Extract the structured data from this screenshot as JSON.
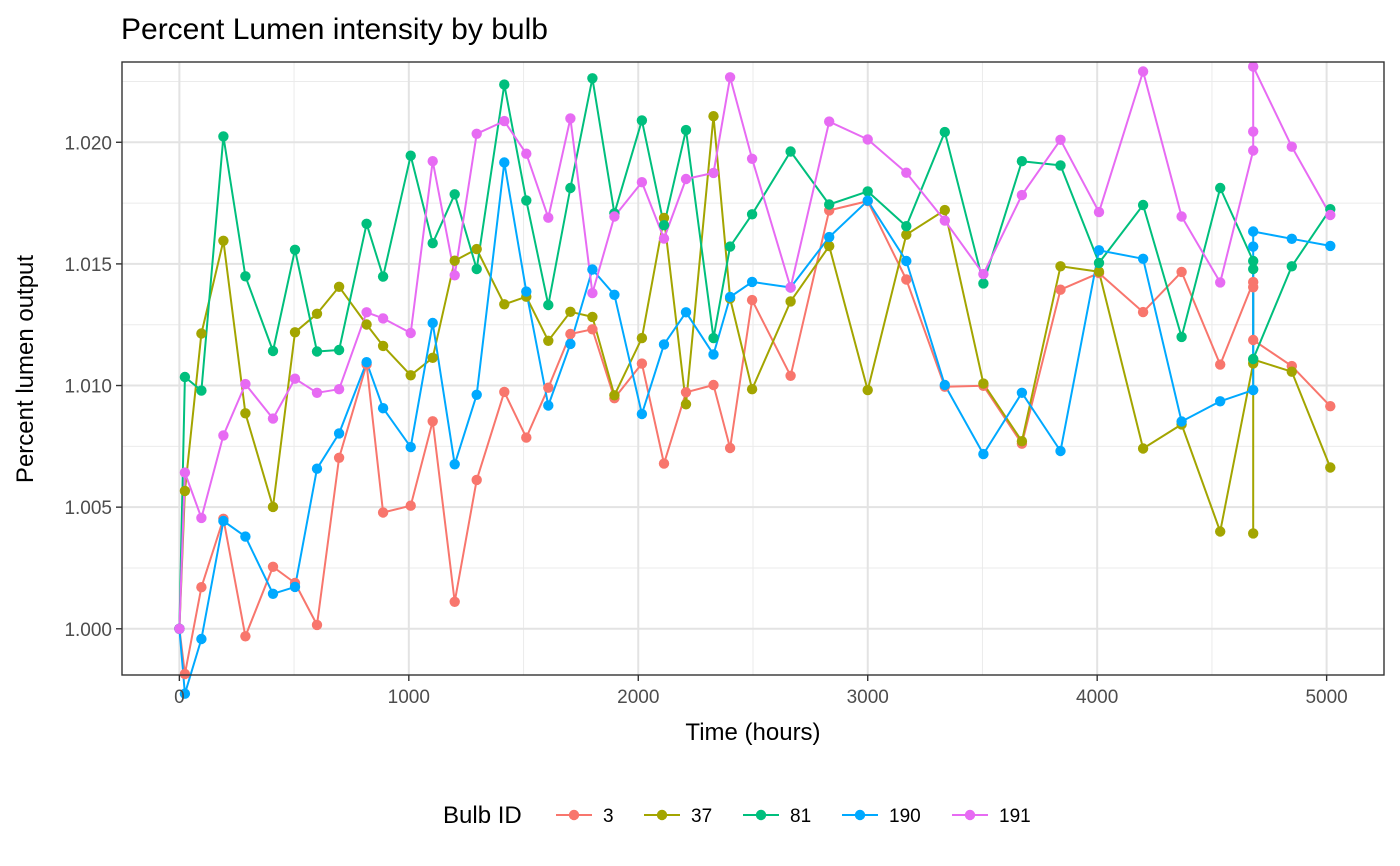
{
  "chart_data": {
    "type": "line",
    "title": "Percent Lumen intensity by bulb",
    "xlabel": "Time (hours)",
    "ylabel": "Percent lumen output",
    "xlim": [
      -250,
      5250
    ],
    "ylim": [
      0.9981,
      1.0233
    ],
    "x_ticks": [
      0,
      1000,
      2000,
      3000,
      4000,
      5000
    ],
    "x_tick_labels": [
      "0",
      "1000",
      "2000",
      "3000",
      "4000",
      "5000"
    ],
    "y_ticks": [
      1.0,
      1.005,
      1.01,
      1.015,
      1.02
    ],
    "y_tick_labels": [
      "1.000",
      "1.005",
      "1.010",
      "1.015",
      "1.020"
    ],
    "grid": true,
    "legend": {
      "title": "Bulb ID",
      "position": "bottom"
    },
    "series": [
      {
        "name": "3",
        "color": "#F8766D",
        "x": [
          0,
          24,
          96,
          192,
          288,
          408,
          504,
          600,
          696,
          816,
          888,
          1008,
          1104,
          1200,
          1296,
          1416,
          1512,
          1608,
          1704,
          1800,
          1896,
          2016,
          2112,
          2208,
          2328,
          2400,
          2496,
          2664,
          2832,
          3000,
          3168,
          3336,
          3504,
          3672,
          3840,
          4008,
          4200,
          4368,
          4536,
          4680,
          4680,
          4680,
          4848,
          5016
        ],
        "y": [
          1.0,
          0.99814,
          1.00171,
          1.00452,
          0.99969,
          1.00255,
          1.00188,
          1.00016,
          1.00703,
          1.01087,
          1.00478,
          1.00506,
          1.00853,
          1.00111,
          1.00612,
          1.00974,
          1.00786,
          1.00991,
          1.01212,
          1.01231,
          1.00948,
          1.0109,
          1.00679,
          1.00972,
          1.01002,
          1.00743,
          1.01351,
          1.0104,
          1.0172,
          1.01758,
          1.01436,
          1.00995,
          1.00999,
          1.00761,
          1.01394,
          1.01462,
          1.01302,
          1.01467,
          1.01086,
          1.01425,
          1.01404,
          1.01187,
          1.0108,
          1.00915
        ]
      },
      {
        "name": "37",
        "color": "#A3A500",
        "x": [
          0,
          24,
          96,
          192,
          288,
          408,
          504,
          600,
          696,
          816,
          888,
          1008,
          1104,
          1200,
          1296,
          1416,
          1512,
          1608,
          1704,
          1800,
          1896,
          2016,
          2112,
          2208,
          2328,
          2400,
          2496,
          2664,
          2832,
          3000,
          3168,
          3336,
          3504,
          3672,
          3840,
          4008,
          4200,
          4368,
          4536,
          4680,
          4680,
          4680,
          4848,
          5016
        ],
        "y": [
          1.0,
          1.00567,
          1.01214,
          1.01595,
          1.00886,
          1.00501,
          1.01219,
          1.01295,
          1.01406,
          1.01251,
          1.01163,
          1.01042,
          1.01114,
          1.01513,
          1.01561,
          1.01334,
          1.01365,
          1.01184,
          1.01303,
          1.01282,
          1.0096,
          1.01195,
          1.01689,
          1.00923,
          1.02107,
          1.01358,
          1.00985,
          1.01346,
          1.01573,
          1.00981,
          1.0162,
          1.01721,
          1.01008,
          1.00771,
          1.0149,
          1.01468,
          1.00741,
          1.0084,
          1.004,
          1.01091,
          1.00392,
          1.01107,
          1.01057,
          1.00663
        ]
      },
      {
        "name": "81",
        "color": "#00BF7D",
        "x": [
          0,
          24,
          96,
          192,
          288,
          408,
          504,
          600,
          696,
          816,
          888,
          1008,
          1104,
          1200,
          1296,
          1416,
          1512,
          1608,
          1704,
          1800,
          1896,
          2016,
          2112,
          2208,
          2328,
          2400,
          2496,
          2664,
          2832,
          3000,
          3168,
          3336,
          3504,
          3672,
          3840,
          4008,
          4200,
          4368,
          4536,
          4680,
          4680,
          4680,
          4848,
          5016
        ],
        "y": [
          1.0,
          1.01035,
          1.00979,
          1.02024,
          1.01449,
          1.01142,
          1.01558,
          1.0114,
          1.01146,
          1.01665,
          1.01448,
          1.01945,
          1.01585,
          1.01786,
          1.01479,
          1.02237,
          1.01761,
          1.01331,
          1.01812,
          1.02263,
          1.01708,
          1.0209,
          1.01659,
          1.0205,
          1.01195,
          1.01571,
          1.01704,
          1.01962,
          1.01744,
          1.01798,
          1.01655,
          1.02042,
          1.0142,
          1.01922,
          1.01905,
          1.01504,
          1.01742,
          1.012,
          1.01812,
          1.01512,
          1.01479,
          1.01109,
          1.0149,
          1.01725
        ]
      },
      {
        "name": "190",
        "color": "#00A9FF",
        "x": [
          0,
          24,
          96,
          192,
          288,
          408,
          504,
          600,
          696,
          816,
          888,
          1008,
          1104,
          1200,
          1296,
          1416,
          1512,
          1608,
          1704,
          1800,
          1896,
          2016,
          2112,
          2208,
          2328,
          2400,
          2496,
          2664,
          2832,
          3000,
          3168,
          3336,
          3504,
          3672,
          3840,
          4008,
          4200,
          4368,
          4536,
          4680,
          4680,
          4680,
          4848,
          5016
        ],
        "y": [
          1.0,
          0.99733,
          0.99958,
          1.00443,
          1.00379,
          1.00144,
          1.00172,
          1.00658,
          1.00803,
          1.01096,
          1.00907,
          1.00747,
          1.01257,
          1.00676,
          1.00962,
          1.01917,
          1.01386,
          1.00918,
          1.01171,
          1.01477,
          1.01373,
          1.00883,
          1.01169,
          1.01301,
          1.01128,
          1.01364,
          1.01426,
          1.01403,
          1.0161,
          1.0176,
          1.01512,
          1.01002,
          1.00718,
          1.0097,
          1.00731,
          1.01556,
          1.01521,
          1.00852,
          1.00935,
          1.00981,
          1.01571,
          1.01633,
          1.01603,
          1.01574
        ]
      },
      {
        "name": "191",
        "color": "#E76BF3",
        "x": [
          0,
          24,
          96,
          192,
          288,
          408,
          504,
          600,
          696,
          816,
          888,
          1008,
          1104,
          1200,
          1296,
          1416,
          1512,
          1608,
          1704,
          1800,
          1896,
          2016,
          2112,
          2208,
          2328,
          2400,
          2496,
          2664,
          2832,
          3000,
          3168,
          3336,
          3504,
          3672,
          3840,
          4008,
          4200,
          4368,
          4536,
          4680,
          4680,
          4680,
          4848,
          5016
        ],
        "y": [
          1.0,
          1.00642,
          1.00456,
          1.00795,
          1.01006,
          1.00864,
          1.01028,
          1.0097,
          1.00985,
          1.01301,
          1.01276,
          1.01216,
          1.01922,
          1.01453,
          1.02035,
          1.02087,
          1.01953,
          1.0169,
          1.02098,
          1.0138,
          1.01695,
          1.01836,
          1.01604,
          1.01849,
          1.01874,
          1.02267,
          1.01932,
          1.01403,
          1.02085,
          1.02012,
          1.01875,
          1.01678,
          1.01458,
          1.01783,
          1.0201,
          1.01713,
          1.02291,
          1.01695,
          1.01424,
          1.01966,
          1.02044,
          1.02311,
          1.01982,
          1.01701
        ]
      }
    ]
  }
}
